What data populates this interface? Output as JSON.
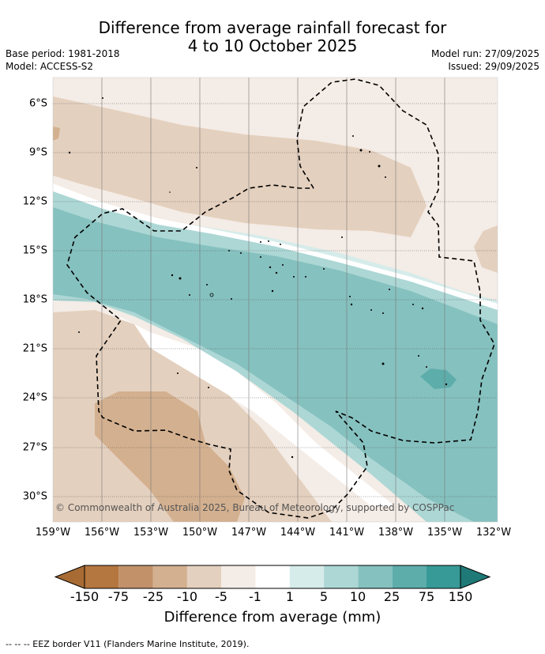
{
  "title_line1": "Difference from average rainfall forecast for",
  "title_line2": "4 to 10 October 2025",
  "base_period": "Base period: 1981-2018",
  "model": "Model: ACCESS-S2",
  "model_run": "Model run: 27/09/2025",
  "issued": "Issued: 29/09/2025",
  "copyright": "© Commonwealth of Australia 2025, Bureau of Meteorology, supported by COSPPac",
  "footnote": "--  --  -- EEZ border V11 (Flanders Marine Institute, 2019).",
  "lat_labels": [
    "6°S",
    "9°S",
    "12°S",
    "15°S",
    "18°S",
    "21°S",
    "24°S",
    "27°S",
    "30°S"
  ],
  "lon_labels": [
    "159°W",
    "156°W",
    "153°W",
    "150°W",
    "147°W",
    "144°W",
    "141°W",
    "138°W",
    "135°W",
    "132°W"
  ],
  "colorbar": {
    "title": "Difference from average (mm)",
    "ticks": [
      "-150",
      "-75",
      "-25",
      "-10",
      "-5",
      "-1",
      "1",
      "5",
      "10",
      "25",
      "75",
      "150"
    ],
    "colors": [
      "#a86b33",
      "#b4773f",
      "#c2916a",
      "#d3b08f",
      "#e4d0be",
      "#f4ece6",
      "#ffffff",
      "#d6ecea",
      "#acd7d5",
      "#85c1bf",
      "#5dadab",
      "#379a97",
      "#1f7a77"
    ]
  }
}
